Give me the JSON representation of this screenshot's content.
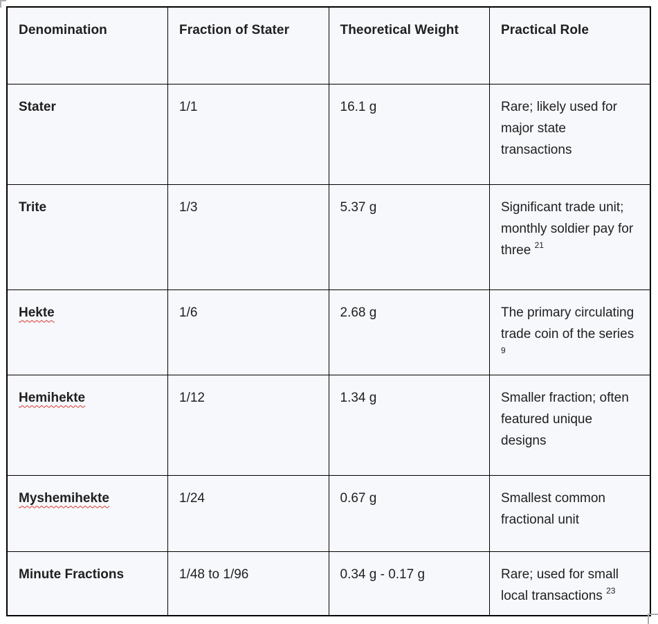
{
  "table": {
    "cell_background": "#f7f8fc",
    "border_color": "#000000",
    "text_color": "#1f1f1f",
    "spellcheck_color": "#d9342b",
    "corner_mark_color": "#a9adb2",
    "columns": [
      "Denomination",
      "Fraction of Stater",
      "Theoretical Weight",
      "Practical Role"
    ],
    "rows": [
      {
        "denomination": "Stater",
        "misspelled": false,
        "fraction": "1/1",
        "weight": "16.1 g",
        "role": "Rare; likely used for major state transactions",
        "citation": ""
      },
      {
        "denomination": "Trite",
        "misspelled": false,
        "fraction": "1/3",
        "weight": "5.37 g",
        "role": "Significant trade unit; monthly soldier pay for three",
        "citation": "21"
      },
      {
        "denomination": "Hekte",
        "misspelled": true,
        "fraction": "1/6",
        "weight": "2.68 g",
        "role": "The primary circulating trade coin of the series",
        "citation": "9"
      },
      {
        "denomination": "Hemihekte",
        "misspelled": true,
        "fraction": "1/12",
        "weight": "1.34 g",
        "role": "Smaller fraction; often featured unique designs",
        "citation": ""
      },
      {
        "denomination": "Myshemihekte",
        "misspelled": true,
        "fraction": "1/24",
        "weight": "0.67 g",
        "role": "Smallest common fractional unit",
        "citation": ""
      },
      {
        "denomination": "Minute Fractions",
        "misspelled": false,
        "fraction": "1/48 to 1/96",
        "weight": "0.34 g - 0.17 g",
        "role": "Rare; used for small local transactions",
        "citation": "23"
      }
    ]
  }
}
